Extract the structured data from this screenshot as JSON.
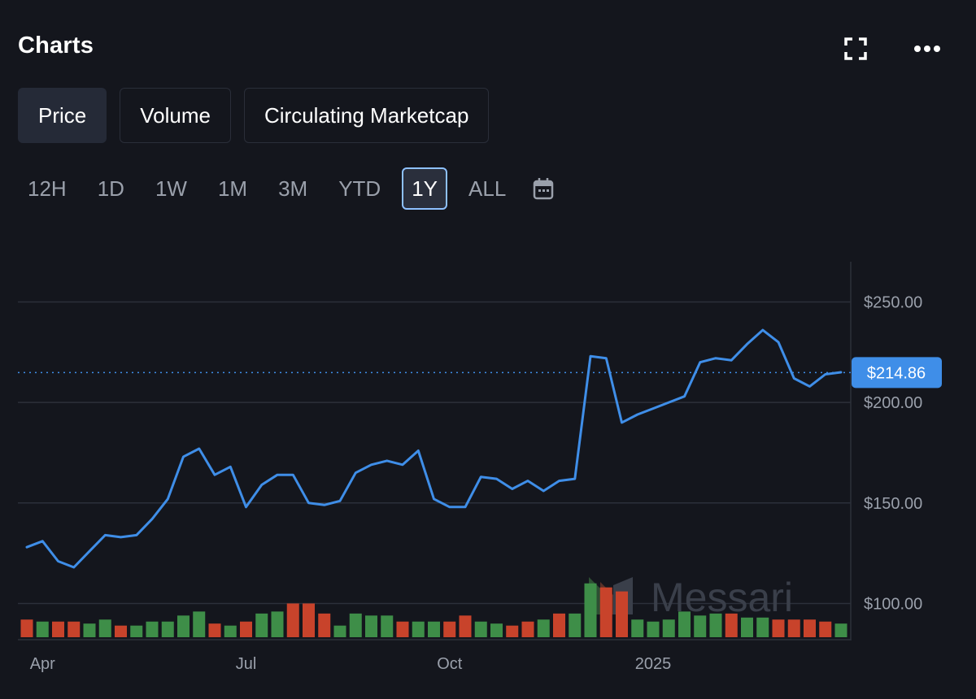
{
  "header": {
    "title": "Charts"
  },
  "tabs": [
    {
      "label": "Price",
      "active": true
    },
    {
      "label": "Volume",
      "active": false
    },
    {
      "label": "Circulating Marketcap",
      "active": false
    }
  ],
  "ranges": [
    {
      "label": "12H",
      "active": false
    },
    {
      "label": "1D",
      "active": false
    },
    {
      "label": "1W",
      "active": false
    },
    {
      "label": "1M",
      "active": false
    },
    {
      "label": "3M",
      "active": false
    },
    {
      "label": "YTD",
      "active": false
    },
    {
      "label": "1Y",
      "active": true
    },
    {
      "label": "ALL",
      "active": false
    }
  ],
  "icons": {
    "fullscreen": "fullscreen-icon",
    "more": "more-icon",
    "calendar": "calendar-icon"
  },
  "watermark": "Messari",
  "colors": {
    "line": "#3f8ee8",
    "up": "#3e8e48",
    "down": "#c8432b",
    "price_badge": "#3f8ee8"
  },
  "chart_data": {
    "type": "line",
    "ylim": [
      82,
      270
    ],
    "y_ticks": [
      100,
      150,
      200,
      250
    ],
    "y_tick_labels": [
      "$100.00",
      "$150.00",
      "$200.00",
      "$250.00"
    ],
    "x_tick_labels": [
      {
        "label": "Apr",
        "index": 1
      },
      {
        "label": "Jul",
        "index": 14
      },
      {
        "label": "Oct",
        "index": 27
      },
      {
        "label": "2025",
        "index": 40
      }
    ],
    "current_price": 214.86,
    "current_price_label": "$214.86",
    "grid": true,
    "series": [
      {
        "values": [
          128,
          131,
          121,
          118,
          126,
          134,
          133,
          134,
          142,
          152,
          173,
          177,
          164,
          168,
          148,
          159,
          164,
          164,
          150,
          149,
          151,
          165,
          169,
          171,
          169,
          176,
          152,
          148,
          148,
          163,
          162,
          157,
          161,
          156,
          161,
          162,
          223,
          222,
          190,
          194,
          197,
          200,
          203,
          220,
          222,
          221,
          229,
          236,
          230,
          212,
          208,
          214,
          215
        ]
      }
    ],
    "volume": [
      {
        "v": 92,
        "up": false
      },
      {
        "v": 91,
        "up": true
      },
      {
        "v": 91,
        "up": false
      },
      {
        "v": 91,
        "up": false
      },
      {
        "v": 90,
        "up": true
      },
      {
        "v": 92,
        "up": true
      },
      {
        "v": 89,
        "up": false
      },
      {
        "v": 89,
        "up": true
      },
      {
        "v": 91,
        "up": true
      },
      {
        "v": 91,
        "up": true
      },
      {
        "v": 94,
        "up": true
      },
      {
        "v": 96,
        "up": true
      },
      {
        "v": 90,
        "up": false
      },
      {
        "v": 89,
        "up": true
      },
      {
        "v": 91,
        "up": false
      },
      {
        "v": 95,
        "up": true
      },
      {
        "v": 96,
        "up": true
      },
      {
        "v": 100,
        "up": false
      },
      {
        "v": 100,
        "up": false
      },
      {
        "v": 95,
        "up": false
      },
      {
        "v": 89,
        "up": true
      },
      {
        "v": 95,
        "up": true
      },
      {
        "v": 94,
        "up": true
      },
      {
        "v": 94,
        "up": true
      },
      {
        "v": 91,
        "up": false
      },
      {
        "v": 91,
        "up": true
      },
      {
        "v": 91,
        "up": true
      },
      {
        "v": 91,
        "up": false
      },
      {
        "v": 94,
        "up": false
      },
      {
        "v": 91,
        "up": true
      },
      {
        "v": 90,
        "up": true
      },
      {
        "v": 89,
        "up": false
      },
      {
        "v": 91,
        "up": false
      },
      {
        "v": 92,
        "up": true
      },
      {
        "v": 95,
        "up": false
      },
      {
        "v": 95,
        "up": true
      },
      {
        "v": 110,
        "up": true
      },
      {
        "v": 108,
        "up": false
      },
      {
        "v": 106,
        "up": false
      },
      {
        "v": 92,
        "up": true
      },
      {
        "v": 91,
        "up": true
      },
      {
        "v": 92,
        "up": true
      },
      {
        "v": 96,
        "up": true
      },
      {
        "v": 94,
        "up": true
      },
      {
        "v": 95,
        "up": true
      },
      {
        "v": 95,
        "up": false
      },
      {
        "v": 93,
        "up": true
      },
      {
        "v": 93,
        "up": true
      },
      {
        "v": 92,
        "up": false
      },
      {
        "v": 92,
        "up": false
      },
      {
        "v": 92,
        "up": false
      },
      {
        "v": 91,
        "up": false
      },
      {
        "v": 90,
        "up": true
      }
    ]
  }
}
